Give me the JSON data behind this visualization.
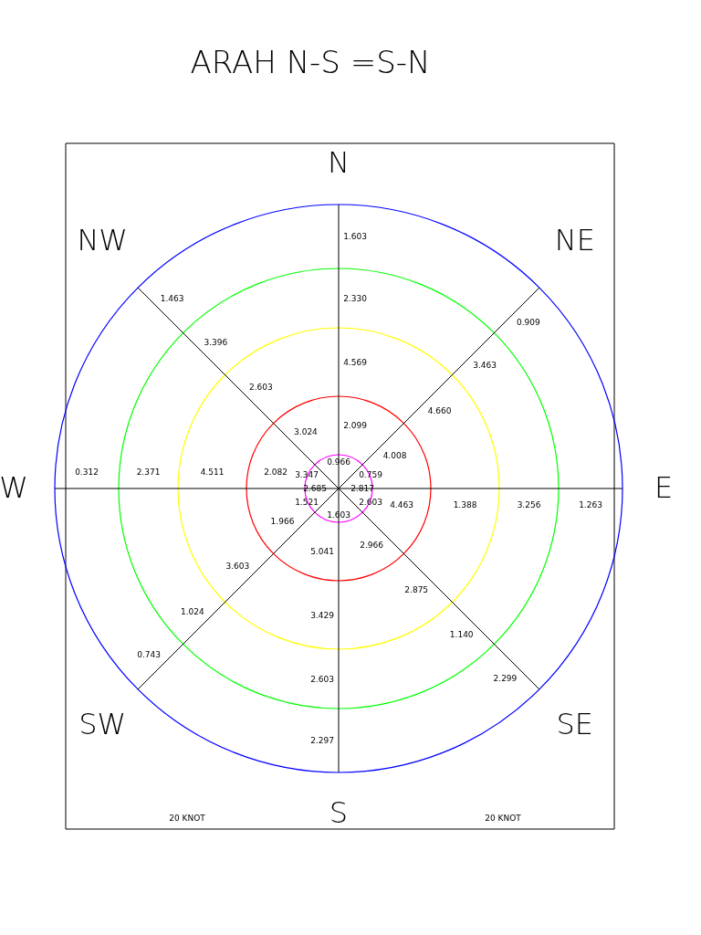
{
  "chart_data": {
    "type": "other",
    "title": "ARAH N-S =S-N",
    "categories": [
      "N",
      "NE",
      "E",
      "SE",
      "S",
      "SW",
      "W",
      "NW"
    ],
    "series": [
      {
        "color": "#ff00ff",
        "values": [
          0.966,
          0.759,
          2.817,
          2.603,
          1.603,
          1.521,
          2.685,
          3.347
        ],
        "value_labels": [
          "0.966",
          "0.759",
          "2.817",
          "2.603",
          "1.603",
          "1.521",
          "2.685",
          "3.347"
        ]
      },
      {
        "color": "#ff0000",
        "values": [
          2.099,
          4.008,
          4.463,
          2.966,
          5.041,
          1.966,
          2.082,
          3.024
        ],
        "value_labels": [
          "2.099",
          "4.008",
          "4.463",
          "2.966",
          "5.041",
          "1.966",
          "2.082",
          "3.024"
        ]
      },
      {
        "color": "#ffff00",
        "values": [
          4.569,
          4.66,
          1.388,
          2.875,
          3.429,
          3.603,
          4.511,
          2.603
        ],
        "value_labels": [
          "4.569",
          "4.660",
          "1.388",
          "2.875",
          "3.429",
          "3.603",
          "4.511",
          "2.603"
        ]
      },
      {
        "color": "#00ff00",
        "values": [
          2.33,
          3.463,
          3.256,
          1.14,
          2.603,
          1.024,
          2.371,
          3.396
        ],
        "value_labels": [
          "2.330",
          "3.463",
          "3.256",
          "1.140",
          "2.603",
          "1.024",
          "2.371",
          "3.396"
        ]
      },
      {
        "color": "#0000ff",
        "values": [
          1.603,
          0.909,
          1.263,
          2.299,
          2.297,
          0.743,
          0.312,
          1.463
        ],
        "value_labels": [
          "1.603",
          "0.909",
          "1.263",
          "2.299",
          "2.297",
          "0.743",
          "0.312",
          "1.463"
        ]
      }
    ],
    "annotations": [
      "20 KNOT",
      "20 KNOT"
    ]
  }
}
